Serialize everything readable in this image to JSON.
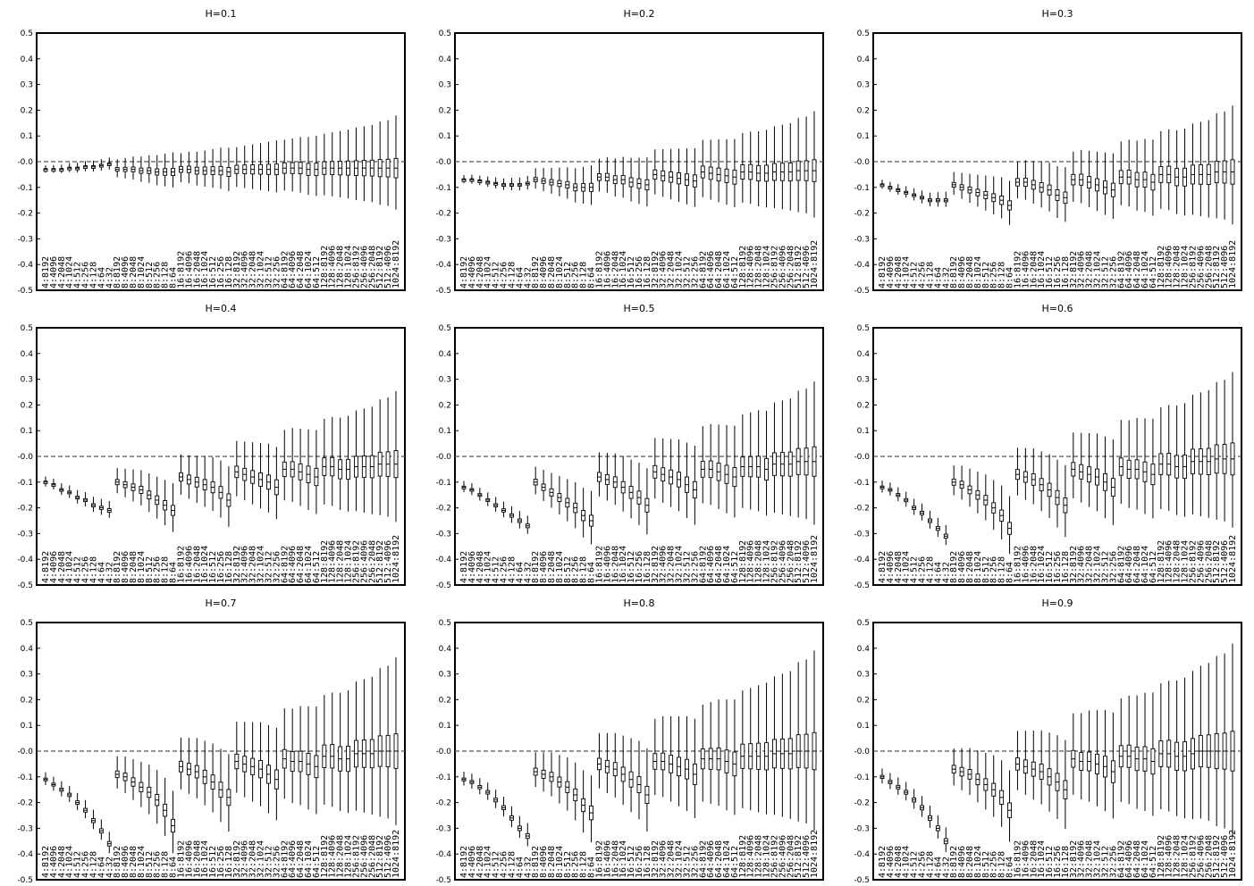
{
  "figure": {
    "panel_titles": [
      "H=0.1",
      "H=0.2",
      "H=0.3",
      "H=0.4",
      "H=0.5",
      "H=0.6",
      "H=0.7",
      "H=0.8",
      "H=0.9"
    ]
  },
  "chart_data": {
    "type": "box",
    "ylim": [
      -0.5,
      0.5
    ],
    "yticks": [
      "0.5",
      "0.4",
      "0.3",
      "0.2",
      "0.1",
      "-0.0",
      "-0.1",
      "-0.2",
      "-0.3",
      "-0.4",
      "-0.5"
    ],
    "reference_line": 0.0,
    "categories": [
      "4:8192",
      "4:4096",
      "4:2048",
      "4:1024",
      "4:512",
      "4:256",
      "4:128",
      "4:64",
      "4:32",
      "8:8192",
      "8:4096",
      "8:2048",
      "8:1024",
      "8:512",
      "8:256",
      "8:128",
      "8:64",
      "16:8192",
      "16:4096",
      "16:2048",
      "16:1024",
      "16:512",
      "16:256",
      "16:128",
      "32:8192",
      "32:4096",
      "32:2048",
      "32:1024",
      "32:512",
      "32:256",
      "64:8192",
      "64:4096",
      "64:2048",
      "64:1024",
      "64:512",
      "128:8192",
      "128:4096",
      "128:2048",
      "128:1024",
      "256:8192",
      "256:4096",
      "256:2048",
      "512:8192",
      "512:4096",
      "1024:8192"
    ],
    "panels": [
      {
        "H": "0.1",
        "medians": [
          -0.03,
          -0.03,
          -0.03,
          -0.025,
          -0.025,
          -0.02,
          -0.02,
          -0.015,
          -0.01,
          -0.03,
          -0.03,
          -0.03,
          -0.035,
          -0.035,
          -0.04,
          -0.04,
          -0.04,
          -0.03,
          -0.03,
          -0.035,
          -0.035,
          -0.035,
          -0.035,
          -0.04,
          -0.03,
          -0.03,
          -0.03,
          -0.03,
          -0.03,
          -0.03,
          -0.025,
          -0.025,
          -0.025,
          -0.03,
          -0.03,
          -0.025,
          -0.025,
          -0.025,
          -0.025,
          -0.025,
          -0.025,
          -0.025,
          -0.025,
          -0.025,
          -0.025
        ]
      },
      {
        "H": "0.2",
        "medians": [
          -0.07,
          -0.07,
          -0.075,
          -0.08,
          -0.085,
          -0.09,
          -0.09,
          -0.09,
          -0.085,
          -0.07,
          -0.075,
          -0.08,
          -0.085,
          -0.09,
          -0.1,
          -0.1,
          -0.1,
          -0.06,
          -0.06,
          -0.07,
          -0.07,
          -0.08,
          -0.085,
          -0.09,
          -0.05,
          -0.055,
          -0.06,
          -0.065,
          -0.07,
          -0.075,
          -0.04,
          -0.045,
          -0.05,
          -0.055,
          -0.06,
          -0.04,
          -0.04,
          -0.045,
          -0.045,
          -0.04,
          -0.04,
          -0.04,
          -0.035,
          -0.035,
          -0.035
        ]
      },
      {
        "H": "0.3",
        "medians": [
          -0.09,
          -0.1,
          -0.11,
          -0.12,
          -0.13,
          -0.14,
          -0.15,
          -0.15,
          -0.15,
          -0.09,
          -0.1,
          -0.11,
          -0.12,
          -0.13,
          -0.14,
          -0.15,
          -0.17,
          -0.08,
          -0.08,
          -0.09,
          -0.1,
          -0.11,
          -0.13,
          -0.14,
          -0.07,
          -0.07,
          -0.08,
          -0.09,
          -0.1,
          -0.11,
          -0.06,
          -0.06,
          -0.07,
          -0.07,
          -0.08,
          -0.05,
          -0.05,
          -0.06,
          -0.06,
          -0.05,
          -0.05,
          -0.05,
          -0.04,
          -0.04,
          -0.04
        ]
      },
      {
        "H": "0.4",
        "medians": [
          -0.1,
          -0.11,
          -0.13,
          -0.14,
          -0.16,
          -0.17,
          -0.19,
          -0.2,
          -0.21,
          -0.1,
          -0.11,
          -0.12,
          -0.13,
          -0.15,
          -0.17,
          -0.19,
          -0.21,
          -0.08,
          -0.09,
          -0.1,
          -0.11,
          -0.12,
          -0.14,
          -0.17,
          -0.06,
          -0.07,
          -0.08,
          -0.09,
          -0.1,
          -0.12,
          -0.05,
          -0.05,
          -0.06,
          -0.07,
          -0.08,
          -0.04,
          -0.04,
          -0.05,
          -0.05,
          -0.04,
          -0.04,
          -0.04,
          -0.03,
          -0.03,
          -0.03
        ]
      },
      {
        "H": "0.5",
        "medians": [
          -0.12,
          -0.13,
          -0.15,
          -0.17,
          -0.19,
          -0.21,
          -0.23,
          -0.25,
          -0.27,
          -0.1,
          -0.12,
          -0.14,
          -0.16,
          -0.18,
          -0.2,
          -0.23,
          -0.25,
          -0.08,
          -0.09,
          -0.1,
          -0.12,
          -0.14,
          -0.16,
          -0.19,
          -0.06,
          -0.07,
          -0.08,
          -0.09,
          -0.11,
          -0.13,
          -0.05,
          -0.05,
          -0.06,
          -0.07,
          -0.08,
          -0.04,
          -0.04,
          -0.04,
          -0.05,
          -0.03,
          -0.03,
          -0.03,
          -0.02,
          -0.02,
          -0.02
        ]
      },
      {
        "H": "0.6",
        "medians": [
          -0.12,
          -0.13,
          -0.15,
          -0.17,
          -0.2,
          -0.22,
          -0.25,
          -0.28,
          -0.31,
          -0.1,
          -0.11,
          -0.13,
          -0.15,
          -0.17,
          -0.2,
          -0.23,
          -0.28,
          -0.07,
          -0.08,
          -0.09,
          -0.11,
          -0.13,
          -0.16,
          -0.19,
          -0.05,
          -0.06,
          -0.07,
          -0.08,
          -0.1,
          -0.12,
          -0.04,
          -0.05,
          -0.05,
          -0.06,
          -0.07,
          -0.03,
          -0.03,
          -0.04,
          -0.04,
          -0.02,
          -0.02,
          -0.02,
          -0.01,
          -0.01,
          -0.01
        ]
      },
      {
        "H": "0.7",
        "medians": [
          -0.11,
          -0.13,
          -0.15,
          -0.17,
          -0.2,
          -0.23,
          -0.27,
          -0.31,
          -0.36,
          -0.09,
          -0.1,
          -0.12,
          -0.14,
          -0.16,
          -0.19,
          -0.23,
          -0.29,
          -0.06,
          -0.07,
          -0.08,
          -0.1,
          -0.12,
          -0.15,
          -0.18,
          -0.04,
          -0.05,
          -0.06,
          -0.07,
          -0.09,
          -0.11,
          -0.03,
          -0.04,
          -0.04,
          -0.05,
          -0.06,
          -0.02,
          -0.02,
          -0.03,
          -0.03,
          -0.01,
          -0.01,
          -0.01,
          0.0,
          0.0,
          0.0
        ]
      },
      {
        "H": "0.8",
        "medians": [
          -0.11,
          -0.12,
          -0.14,
          -0.16,
          -0.19,
          -0.22,
          -0.26,
          -0.3,
          -0.33,
          -0.08,
          -0.09,
          -0.1,
          -0.12,
          -0.14,
          -0.17,
          -0.21,
          -0.24,
          -0.05,
          -0.06,
          -0.07,
          -0.09,
          -0.11,
          -0.13,
          -0.17,
          -0.04,
          -0.04,
          -0.05,
          -0.06,
          -0.07,
          -0.09,
          -0.03,
          -0.03,
          -0.03,
          -0.04,
          -0.05,
          -0.02,
          -0.02,
          -0.02,
          -0.02,
          -0.01,
          -0.01,
          -0.01,
          0.0,
          0.0,
          0.0
        ]
      },
      {
        "H": "0.9",
        "medians": [
          -0.1,
          -0.12,
          -0.14,
          -0.16,
          -0.19,
          -0.22,
          -0.26,
          -0.3,
          -0.35,
          -0.07,
          -0.08,
          -0.09,
          -0.11,
          -0.13,
          -0.15,
          -0.18,
          -0.23,
          -0.05,
          -0.06,
          -0.07,
          -0.08,
          -0.1,
          -0.12,
          -0.15,
          -0.03,
          -0.04,
          -0.04,
          -0.05,
          -0.06,
          -0.08,
          -0.02,
          -0.02,
          -0.03,
          -0.03,
          -0.04,
          -0.01,
          -0.01,
          -0.02,
          -0.02,
          -0.01,
          0.0,
          0.0,
          0.0,
          0.0,
          0.0
        ]
      }
    ]
  }
}
